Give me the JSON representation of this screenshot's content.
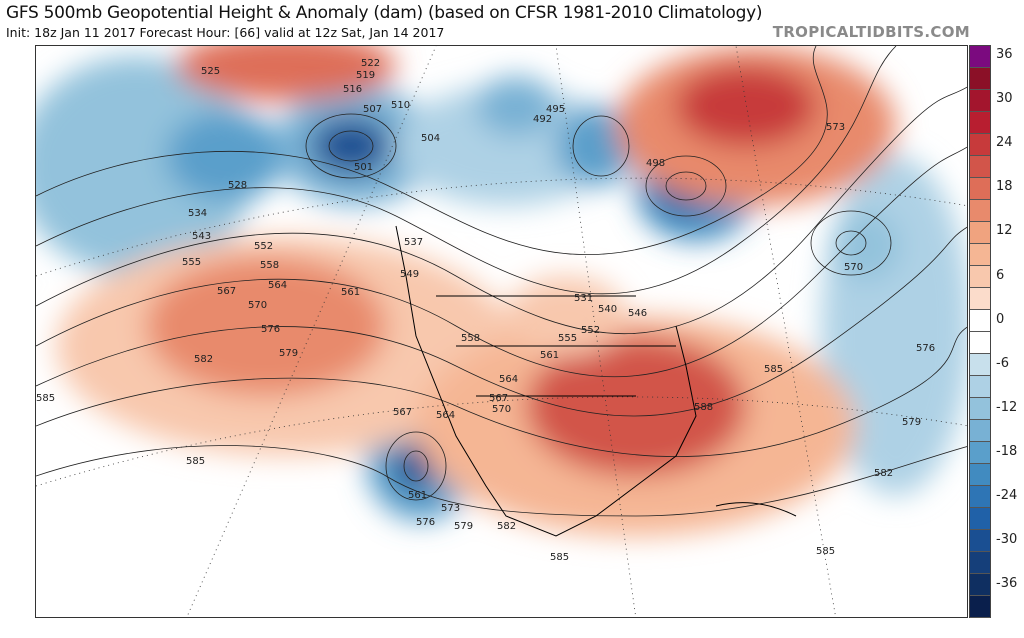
{
  "header": {
    "title": "GFS 500mb Geopotential Height & Anomaly (dam) (based on CFSR 1981-2010 Climatology)",
    "subtitle": "Init: 18z Jan 11 2017   Forecast Hour: [66]   valid at 12z Sat, Jan 14 2017",
    "brand": "TROPICALTIDBITS.COM"
  },
  "colorbar": {
    "labels": [
      "36",
      "30",
      "24",
      "18",
      "12",
      "6",
      "0",
      "-6",
      "-12",
      "-18",
      "-24",
      "-30",
      "-36"
    ],
    "colors": [
      "#7b0a7f",
      "#8b1027",
      "#a3152d",
      "#b81e30",
      "#c73a3b",
      "#d2554a",
      "#de6e58",
      "#e88a6c",
      "#f0a37f",
      "#f5b694",
      "#f8c8ad",
      "#fbdccb",
      "#ffffff",
      "#ffffff",
      "#c8e0ec",
      "#aed1e5",
      "#93c2dc",
      "#78b1d4",
      "#5a9fcb",
      "#418bc0",
      "#2e75b5",
      "#2061a8",
      "#1a4f92",
      "#153f7a",
      "#0f2f61",
      "#0a1f4c"
    ]
  },
  "contour_labels": [
    "525",
    "522",
    "519",
    "516",
    "507",
    "510",
    "504",
    "501",
    "495",
    "492",
    "498",
    "528",
    "534",
    "543",
    "552",
    "555",
    "558",
    "567",
    "564",
    "570",
    "561",
    "576",
    "579",
    "582",
    "585",
    "573",
    "570",
    "576",
    "579",
    "582",
    "585",
    "588",
    "558",
    "561",
    "564",
    "567",
    "570",
    "531",
    "537",
    "540",
    "546",
    "549",
    "552",
    "555",
    "567",
    "564",
    "561",
    "573",
    "576",
    "579",
    "582",
    "585",
    "585",
    "585"
  ]
}
